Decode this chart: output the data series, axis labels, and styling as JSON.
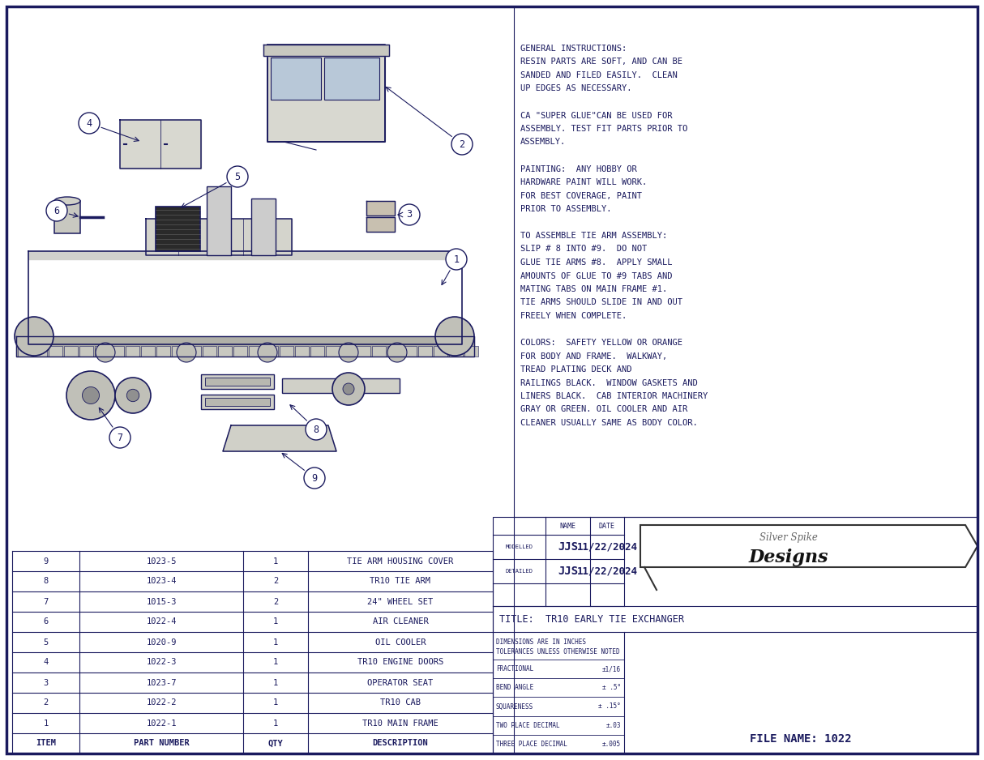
{
  "bg_color": "#ffffff",
  "border_color": "#1a1a5e",
  "text_color": "#1a1a5e",
  "instructions": [
    "GENERAL INSTRUCTIONS:",
    "RESIN PARTS ARE SOFT, AND CAN BE",
    "SANDED AND FILED EASILY.  CLEAN",
    "UP EDGES AS NECESSARY.",
    "",
    "CA \"SUPER GLUE\"CAN BE USED FOR",
    "ASSEMBLY. TEST FIT PARTS PRIOR TO",
    "ASSEMBLY.",
    "",
    "PAINTING:  ANY HOBBY OR",
    "HARDWARE PAINT WILL WORK.",
    "FOR BEST COVERAGE, PAINT",
    "PRIOR TO ASSEMBLY.",
    "",
    "TO ASSEMBLE TIE ARM ASSEMBLY:",
    "SLIP # 8 INTO #9.  DO NOT",
    "GLUE TIE ARMS #8.  APPLY SMALL",
    "AMOUNTS OF GLUE TO #9 TABS AND",
    "MATING TABS ON MAIN FRAME #1.",
    "TIE ARMS SHOULD SLIDE IN AND OUT",
    "FREELY WHEN COMPLETE.",
    "",
    "COLORS:  SAFETY YELLOW OR ORANGE",
    "FOR BODY AND FRAME.  WALKWAY,",
    "TREAD PLATING DECK AND",
    "RAILINGS BLACK.  WINDOW GASKETS AND",
    "LINERS BLACK.  CAB INTERIOR MACHINERY",
    "GRAY OR GREEN. OIL COOLER AND AIR",
    "CLEANER USUALLY SAME AS BODY COLOR."
  ],
  "bom_rows": [
    {
      "item": "9",
      "part": "1023-5",
      "qty": "1",
      "desc": "TIE ARM HOUSING COVER"
    },
    {
      "item": "8",
      "part": "1023-4",
      "qty": "2",
      "desc": "TR10 TIE ARM"
    },
    {
      "item": "7",
      "part": "1015-3",
      "qty": "2",
      "desc": "24\" WHEEL SET"
    },
    {
      "item": "6",
      "part": "1022-4",
      "qty": "1",
      "desc": "AIR CLEANER"
    },
    {
      "item": "5",
      "part": "1020-9",
      "qty": "1",
      "desc": "OIL COOLER"
    },
    {
      "item": "4",
      "part": "1022-3",
      "qty": "1",
      "desc": "TR10 ENGINE DOORS"
    },
    {
      "item": "3",
      "part": "1023-7",
      "qty": "1",
      "desc": "OPERATOR SEAT"
    },
    {
      "item": "2",
      "part": "1022-2",
      "qty": "1",
      "desc": "TR10 CAB"
    },
    {
      "item": "1",
      "part": "1022-1",
      "qty": "1",
      "desc": "TR10 MAIN FRAME"
    },
    {
      "item": "ITEM",
      "part": "PART NUMBER",
      "qty": "QTY",
      "desc": "DESCRIPTION"
    }
  ],
  "tb_modelled": "JJS",
  "tb_modelled_date": "11/22/2024",
  "tb_detailed": "JJS",
  "tb_detailed_date": "11/22/2024",
  "tb_title": "TR10 EARLY TIE EXCHANGER",
  "tb_file": "FILE NAME: 1022",
  "tb_dims": "DIMENSIONS ARE IN INCHES",
  "tb_tol": "TOLERANCES UNLESS OTHERWISE NOTED",
  "tb_frac": "FRACTIONAL",
  "tb_frac_val": "±1/16",
  "tb_bend": "BEND ANGLE",
  "tb_bend_val": "± .5°",
  "tb_sq": "SQUARENESS",
  "tb_sq_val": "± .15°",
  "tb_two": "TWO PLACE DECIMAL",
  "tb_two_val": "±.03",
  "tb_three": "THREE PLACE DECIMAL",
  "tb_three_val": "±.005"
}
